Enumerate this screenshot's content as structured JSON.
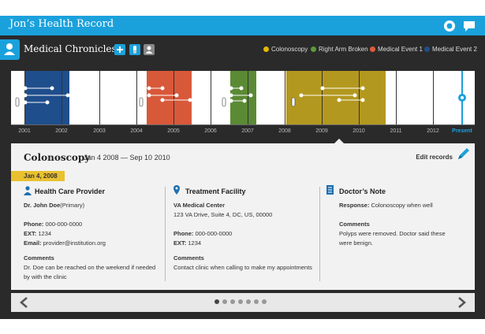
{
  "header": {
    "title": "Jon’s Health Record",
    "icons": [
      "record-icon",
      "message-icon"
    ]
  },
  "toolbar": {
    "section_title": "Medical Chronicles",
    "tools": [
      "add-icon",
      "medication-icon",
      "person-icon"
    ],
    "legend": [
      {
        "label": "Colonoscopy",
        "color": "#e6b800"
      },
      {
        "label": "Right Arm Broken",
        "color": "#5b9a3a"
      },
      {
        "label": "Medical Event 1",
        "color": "#e05a3a"
      },
      {
        "label": "Medical Event 2",
        "color": "#1f4e8c"
      }
    ]
  },
  "timeline": {
    "years": [
      "2001",
      "2002",
      "2003",
      "2004",
      "2005",
      "2006",
      "2007",
      "2008",
      "2009",
      "2010",
      "2011",
      "2012",
      "Present"
    ]
  },
  "details": {
    "title": "Colonoscopy",
    "range": "Jan 4 2008 — Sep 10 2010",
    "edit_label": "Edit records",
    "date_tag": "Jan 4, 2008",
    "provider": {
      "heading": "Health Care Provider",
      "name": "Dr. John Doe",
      "role": "(Primary)",
      "phone_label": "Phone:",
      "phone": "000-000-0000",
      "ext_label": "EXT:",
      "ext": "1234",
      "email_label": "Email:",
      "email": "provider@institution.org",
      "comments_label": "Comments",
      "comments": "Dr. Doe can be reached on the weekend if needed by with the clinic"
    },
    "facility": {
      "heading": "Treatment Facility",
      "name": "VA Medical Center",
      "address": "123 VA Drive, Suite 4, DC, US, 00000",
      "phone_label": "Phone:",
      "phone": "000-000-0000",
      "ext_label": "EXT:",
      "ext": "1234",
      "comments_label": "Comments",
      "comments": "Contact clinic when calling to make my appointments"
    },
    "note": {
      "heading": "Doctor’s Note",
      "response_label": "Response:",
      "response": "Colonoscopy when well",
      "comments_label": "Comments",
      "comments": "Polyps were removed. Doctor said these were benign."
    }
  },
  "pager": {
    "pages": 7,
    "active": 0
  }
}
